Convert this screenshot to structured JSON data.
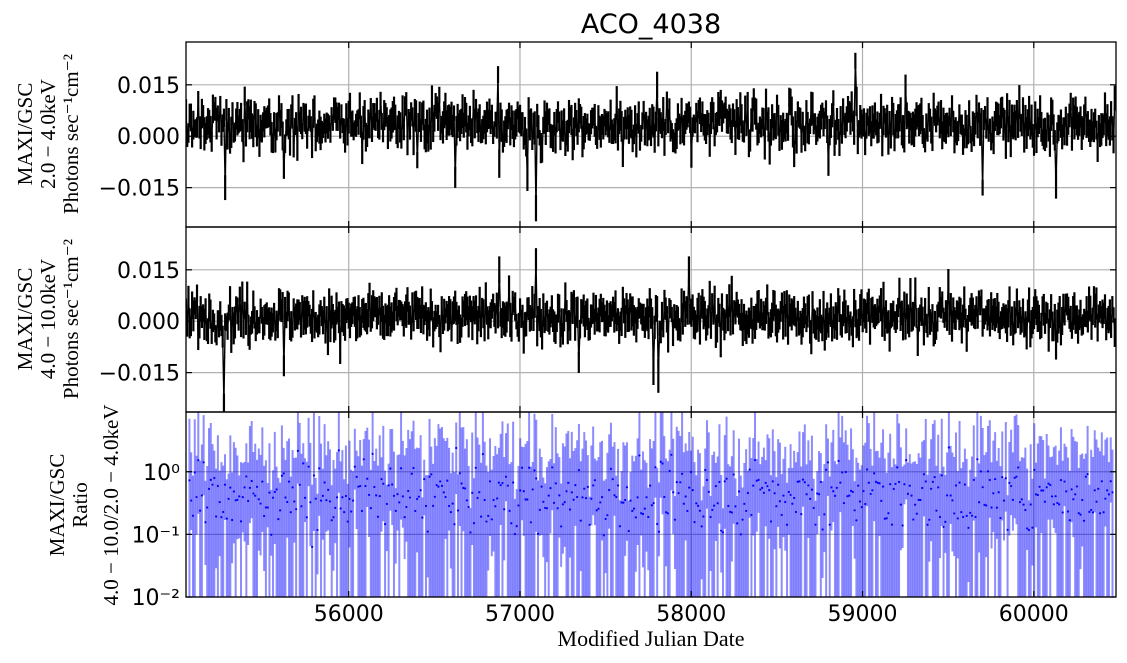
{
  "chart_data": {
    "type": "line",
    "title": "ACO_4038",
    "xlabel": "Modified Julian Date",
    "xlim": [
      55050,
      60480
    ],
    "x_ticks": [
      "56000",
      "57000",
      "58000",
      "59000",
      "60000"
    ],
    "panels": [
      {
        "name": "soft-band",
        "ylabel_lines": [
          "MAXI/GSC",
          "2.0 − 4.0keV",
          "Photons sec⁻¹cm⁻²"
        ],
        "scale": "linear",
        "ylim": [
          -0.0265,
          0.0275
        ],
        "y_ticks": [
          "0.015",
          "0.000",
          "−0.015"
        ],
        "color": "#000000",
        "x": [
          55280,
          55620,
          55900,
          56400,
          56620,
          56870,
          56880,
          57040,
          57090,
          57600,
          57800,
          58000,
          58600,
          58800,
          58960,
          59250,
          59700,
          60130
        ],
        "values": [
          -0.015,
          -0.009,
          0.006,
          -0.007,
          -0.012,
          0.018,
          -0.008,
          -0.011,
          -0.021,
          -0.006,
          0.015,
          -0.005,
          -0.006,
          -0.007,
          0.022,
          0.014,
          -0.015,
          -0.014
        ],
        "note_pattern": "dense noisy light curve with error bars, ~2-day binning"
      },
      {
        "name": "hard-band",
        "ylabel_lines": [
          "MAXI/GSC",
          "4.0 − 10.0keV",
          "Photons sec⁻¹cm⁻²"
        ],
        "scale": "linear",
        "ylim": [
          -0.0265,
          0.0275
        ],
        "y_ticks": [
          "0.015",
          "0.000",
          "−0.015"
        ],
        "color": "#000000",
        "x": [
          55270,
          55620,
          55950,
          56880,
          57090,
          57340,
          57780,
          57810,
          57990,
          59500,
          60130
        ],
        "values": [
          -0.024,
          -0.013,
          -0.008,
          0.015,
          0.018,
          -0.012,
          -0.014,
          -0.016,
          0.015,
          0.011,
          -0.007
        ]
      },
      {
        "name": "ratio",
        "ylabel_lines": [
          "MAXI/GSC",
          "Ratio",
          "4.0 − 10.0/2.0 − 4.0keV"
        ],
        "scale": "log",
        "ylim": [
          0.01,
          9
        ],
        "y_ticks": [
          "10⁰",
          "10⁻¹",
          "10⁻²"
        ],
        "color": "#0000ff",
        "typical_value": 0.4
      }
    ]
  }
}
